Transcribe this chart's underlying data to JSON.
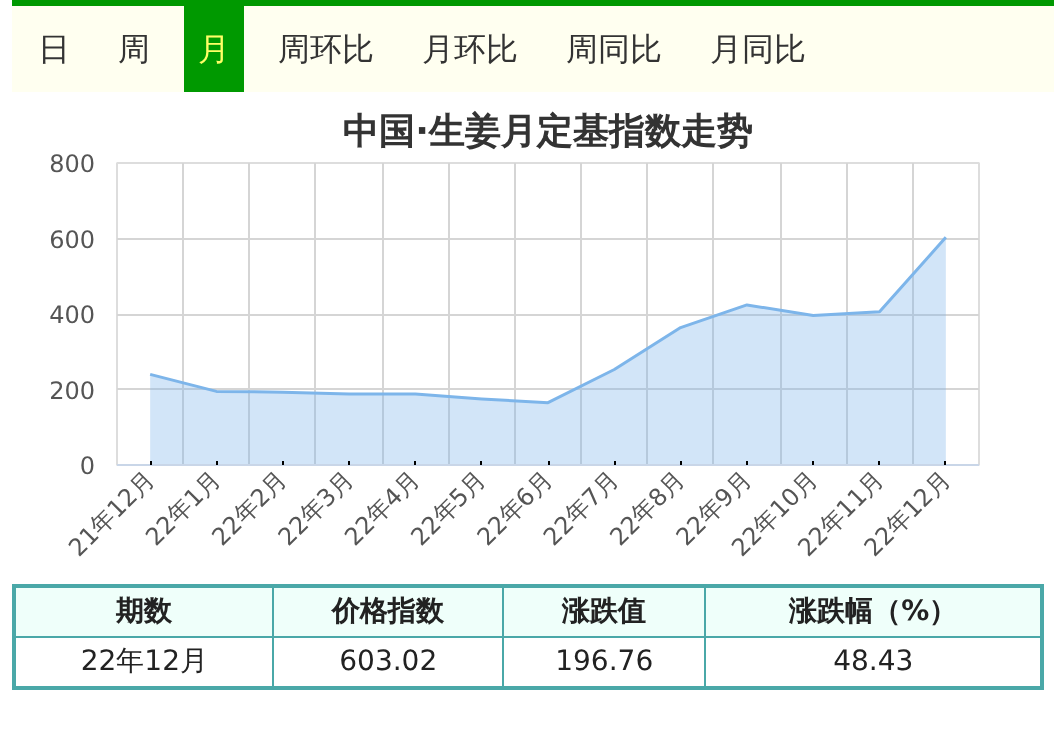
{
  "chart_data": {
    "type": "area",
    "title": "中国·生姜月定基指数走势",
    "categories": [
      "21年12月",
      "22年1月",
      "22年2月",
      "22年3月",
      "22年4月",
      "22年5月",
      "22年6月",
      "22年7月",
      "22年8月",
      "22年9月",
      "22年10月",
      "22年11月",
      "22年12月"
    ],
    "series": [
      {
        "color": "#7db5ea",
        "values": [
          240,
          195,
          193,
          188,
          188,
          175,
          165,
          253,
          364,
          424,
          396,
          406,
          603.02
        ]
      }
    ],
    "ylim": [
      0,
      800
    ],
    "yticks": [
      0,
      200,
      400,
      600,
      800
    ],
    "grid": true,
    "marker": "none",
    "annotations": [
      "日",
      "周",
      "月",
      "周环比",
      "月环比",
      "周同比",
      "月同比",
      "期数",
      "价格指数",
      "涨跌值",
      "涨跌幅（%）",
      "22年12月",
      "603.02",
      "196.76",
      "48.43"
    ]
  }
}
